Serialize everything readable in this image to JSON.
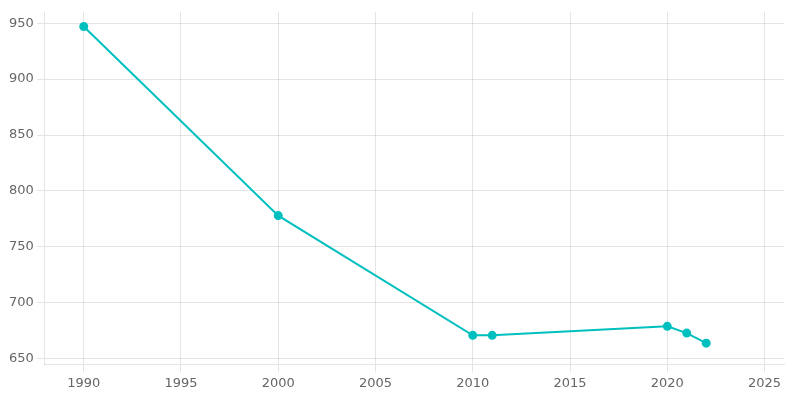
{
  "chart_data": {
    "type": "line",
    "x": [
      1990,
      2000,
      2010,
      2011,
      2020,
      2021,
      2022
    ],
    "values": [
      947,
      778,
      671,
      671,
      679,
      673,
      664
    ],
    "color": "#00BFBF",
    "marker": "circle",
    "xlim": [
      1988,
      2026
    ],
    "ylim": [
      645,
      960
    ],
    "xticks": [
      1990,
      1995,
      2000,
      2005,
      2010,
      2015,
      2020,
      2025
    ],
    "yticks": [
      650,
      700,
      750,
      800,
      850,
      900,
      950
    ],
    "grid": true
  }
}
